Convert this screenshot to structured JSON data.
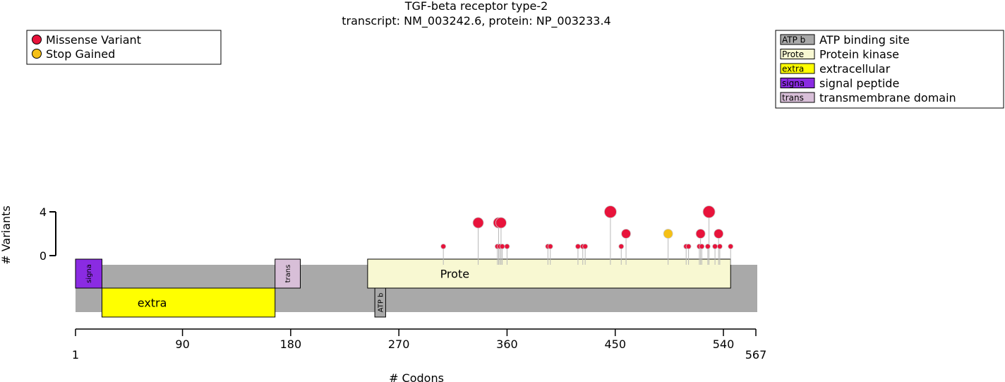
{
  "chart_data": {
    "type": "lollipop",
    "title": "TGF-beta receptor type-2",
    "subtitle": "transcript: NM_003242.6, protein: NP_003233.4",
    "xlabel": "# Codons",
    "ylabel": "# Variants",
    "xlim": [
      1,
      567
    ],
    "ylim": [
      0,
      4
    ],
    "x_ticks": [
      1,
      90,
      180,
      270,
      360,
      450,
      540,
      567
    ],
    "y_ticks": [
      0,
      4
    ],
    "legend_variants": [
      {
        "label": "Missense Variant",
        "color": "#e8133b"
      },
      {
        "label": "Stop Gained",
        "color": "#f5c016"
      }
    ],
    "legend_domains": [
      {
        "short": "ATP b",
        "label": "ATP binding site",
        "color": "#a9a9a9"
      },
      {
        "short": "Prote",
        "label": "Protein kinase",
        "color": "#f8f8d2"
      },
      {
        "short": "extra",
        "label": "extracellular",
        "color": "#ffff00"
      },
      {
        "short": "signa",
        "label": "signal peptide",
        "color": "#8a2be2"
      },
      {
        "short": "trans",
        "label": "transmembrane domain",
        "color": "#d8bfd8"
      }
    ],
    "domains": [
      {
        "short": "signa",
        "name": "signal peptide",
        "start": 1,
        "end": 23,
        "track": "upper",
        "color": "#8a2be2",
        "vertical": true
      },
      {
        "short": "extra",
        "name": "extracellular",
        "start": 23,
        "end": 167,
        "track": "lower",
        "color": "#ffff00",
        "vertical": false
      },
      {
        "short": "trans",
        "name": "transmembrane domain",
        "start": 167,
        "end": 188,
        "track": "upper",
        "color": "#d8bfd8",
        "vertical": true
      },
      {
        "short": "Prote",
        "name": "Protein kinase",
        "start": 244,
        "end": 546,
        "track": "upper",
        "color": "#f8f8d2",
        "vertical": false
      },
      {
        "short": "ATP b",
        "name": "ATP binding site",
        "start": 250,
        "end": 259,
        "track": "lower",
        "color": "#a9a9a9",
        "vertical": true
      }
    ],
    "variants": [
      {
        "pos": 307,
        "count": 1,
        "type": "Missense Variant"
      },
      {
        "pos": 336,
        "count": 3,
        "type": "Missense Variant"
      },
      {
        "pos": 352,
        "count": 1,
        "type": "Missense Variant"
      },
      {
        "pos": 353,
        "count": 3,
        "type": "Missense Variant"
      },
      {
        "pos": 354,
        "count": 1,
        "type": "Missense Variant"
      },
      {
        "pos": 355,
        "count": 3,
        "type": "Missense Variant"
      },
      {
        "pos": 356,
        "count": 1,
        "type": "Missense Variant"
      },
      {
        "pos": 360,
        "count": 1,
        "type": "Missense Variant"
      },
      {
        "pos": 394,
        "count": 1,
        "type": "Missense Variant"
      },
      {
        "pos": 396,
        "count": 1,
        "type": "Missense Variant"
      },
      {
        "pos": 419,
        "count": 1,
        "type": "Missense Variant"
      },
      {
        "pos": 423,
        "count": 1,
        "type": "Missense Variant"
      },
      {
        "pos": 425,
        "count": 1,
        "type": "Missense Variant"
      },
      {
        "pos": 446,
        "count": 4,
        "type": "Missense Variant"
      },
      {
        "pos": 455,
        "count": 1,
        "type": "Missense Variant"
      },
      {
        "pos": 459,
        "count": 2,
        "type": "Missense Variant"
      },
      {
        "pos": 494,
        "count": 2,
        "type": "Stop Gained"
      },
      {
        "pos": 509,
        "count": 1,
        "type": "Missense Variant"
      },
      {
        "pos": 511,
        "count": 1,
        "type": "Missense Variant"
      },
      {
        "pos": 520,
        "count": 1,
        "type": "Missense Variant"
      },
      {
        "pos": 521,
        "count": 2,
        "type": "Missense Variant"
      },
      {
        "pos": 522,
        "count": 1,
        "type": "Missense Variant"
      },
      {
        "pos": 527,
        "count": 1,
        "type": "Missense Variant"
      },
      {
        "pos": 528,
        "count": 4,
        "type": "Missense Variant"
      },
      {
        "pos": 533,
        "count": 1,
        "type": "Missense Variant"
      },
      {
        "pos": 536,
        "count": 2,
        "type": "Missense Variant"
      },
      {
        "pos": 537,
        "count": 1,
        "type": "Missense Variant"
      },
      {
        "pos": 546,
        "count": 1,
        "type": "Missense Variant"
      }
    ]
  }
}
